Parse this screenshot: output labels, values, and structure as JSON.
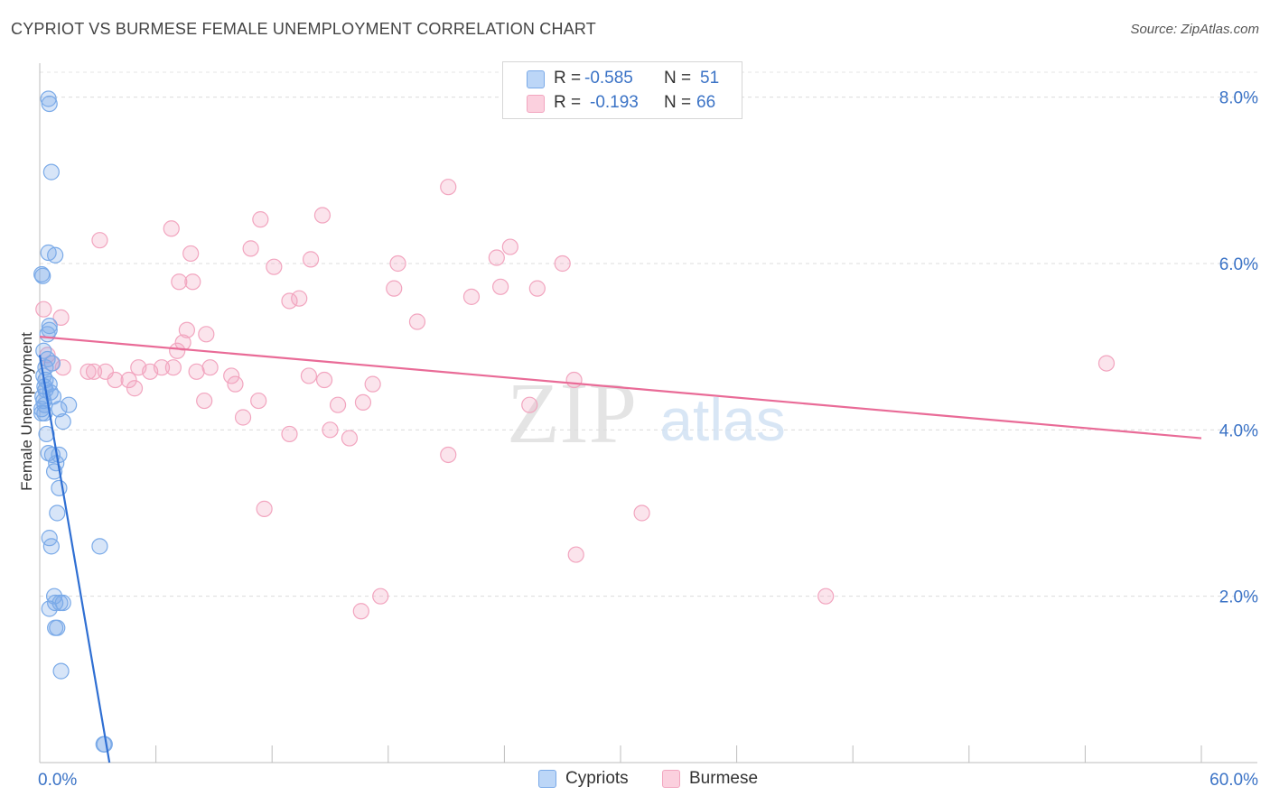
{
  "title": "CYPRIOT VS BURMESE FEMALE UNEMPLOYMENT CORRELATION CHART",
  "source": "Source: ZipAtlas.com",
  "watermark": {
    "zip": "ZIP",
    "atlas": "atlas"
  },
  "legend_box": {
    "series": [
      {
        "r_label": "R =",
        "r_value": "-0.585",
        "n_label": "N =",
        "n_value": "51"
      },
      {
        "r_label": "R =",
        "r_value": "-0.193",
        "n_label": "N =",
        "n_value": "66"
      }
    ]
  },
  "bottom_legend": [
    "Cypriots",
    "Burmese"
  ],
  "chart_data": {
    "type": "scatter",
    "title": "CYPRIOT VS BURMESE FEMALE UNEMPLOYMENT CORRELATION CHART",
    "xlabel": "",
    "ylabel": "Female Unemployment",
    "xlim": [
      0,
      60
    ],
    "ylim": [
      0,
      8.3
    ],
    "x_tick_labels": [
      "0.0%",
      "60.0%"
    ],
    "y_ticks": [
      2,
      4,
      6,
      8
    ],
    "y_tick_labels": [
      "2.0%",
      "4.0%",
      "6.0%",
      "8.0%"
    ],
    "grid": "horizontal dashed",
    "colors": {
      "cypriots": "#7aaae8",
      "burmese": "#f2a5bf",
      "cypriots_line": "#2f6fd3",
      "burmese_line": "#e96b97",
      "tick_label": "#3b73c6"
    },
    "series": [
      {
        "name": "Cypriots",
        "r": -0.585,
        "n": 51,
        "trend": {
          "x": [
            0.0,
            3.6
          ],
          "y": [
            4.9,
            0.0
          ]
        },
        "points": [
          [
            0.45,
            7.98
          ],
          [
            0.5,
            7.92
          ],
          [
            0.6,
            7.1
          ],
          [
            0.45,
            6.13
          ],
          [
            0.8,
            6.1
          ],
          [
            0.1,
            5.87
          ],
          [
            0.15,
            5.85
          ],
          [
            0.5,
            5.25
          ],
          [
            0.5,
            5.2
          ],
          [
            0.4,
            5.15
          ],
          [
            0.2,
            4.95
          ],
          [
            0.4,
            4.85
          ],
          [
            0.65,
            4.8
          ],
          [
            0.3,
            4.6
          ],
          [
            0.25,
            4.52
          ],
          [
            0.3,
            4.48
          ],
          [
            0.55,
            4.45
          ],
          [
            0.15,
            4.4
          ],
          [
            0.2,
            4.35
          ],
          [
            0.25,
            4.3
          ],
          [
            1.5,
            4.3
          ],
          [
            1.0,
            4.25
          ],
          [
            0.1,
            4.2
          ],
          [
            0.25,
            4.2
          ],
          [
            1.2,
            4.1
          ],
          [
            0.35,
            3.95
          ],
          [
            0.45,
            3.72
          ],
          [
            0.65,
            3.7
          ],
          [
            1.0,
            3.7
          ],
          [
            0.85,
            3.6
          ],
          [
            0.75,
            3.5
          ],
          [
            1.0,
            3.3
          ],
          [
            0.9,
            3.0
          ],
          [
            0.5,
            2.7
          ],
          [
            0.6,
            2.6
          ],
          [
            3.1,
            2.6
          ],
          [
            0.75,
            2.0
          ],
          [
            0.8,
            1.92
          ],
          [
            1.05,
            1.92
          ],
          [
            1.2,
            1.92
          ],
          [
            0.5,
            1.85
          ],
          [
            0.8,
            1.62
          ],
          [
            0.9,
            1.62
          ],
          [
            1.1,
            1.1
          ],
          [
            3.3,
            0.22
          ],
          [
            3.35,
            0.22
          ],
          [
            0.1,
            4.25
          ],
          [
            0.3,
            4.75
          ],
          [
            0.5,
            4.55
          ],
          [
            0.7,
            4.4
          ],
          [
            0.2,
            4.65
          ]
        ]
      },
      {
        "name": "Burmese",
        "r": -0.193,
        "n": 66,
        "trend": {
          "x": [
            0.0,
            60.0
          ],
          "y": [
            5.12,
            3.9
          ]
        },
        "points": [
          [
            0.2,
            5.45
          ],
          [
            1.1,
            5.35
          ],
          [
            0.4,
            4.9
          ],
          [
            0.6,
            4.8
          ],
          [
            1.2,
            4.75
          ],
          [
            2.8,
            4.7
          ],
          [
            3.4,
            4.7
          ],
          [
            3.9,
            4.6
          ],
          [
            4.6,
            4.6
          ],
          [
            4.9,
            4.5
          ],
          [
            5.1,
            4.75
          ],
          [
            5.7,
            4.7
          ],
          [
            6.3,
            4.75
          ],
          [
            6.9,
            4.75
          ],
          [
            7.1,
            4.95
          ],
          [
            7.4,
            5.05
          ],
          [
            8.1,
            4.7
          ],
          [
            8.5,
            4.35
          ],
          [
            8.8,
            4.75
          ],
          [
            3.1,
            6.28
          ],
          [
            6.8,
            6.42
          ],
          [
            7.8,
            6.12
          ],
          [
            7.2,
            5.78
          ],
          [
            7.9,
            5.78
          ],
          [
            7.6,
            5.2
          ],
          [
            8.6,
            5.15
          ],
          [
            9.9,
            4.65
          ],
          [
            10.1,
            4.55
          ],
          [
            10.5,
            4.15
          ],
          [
            11.4,
            6.53
          ],
          [
            10.9,
            6.18
          ],
          [
            12.1,
            5.96
          ],
          [
            11.3,
            4.35
          ],
          [
            11.6,
            3.05
          ],
          [
            12.9,
            5.55
          ],
          [
            13.4,
            5.58
          ],
          [
            12.9,
            3.95
          ],
          [
            13.9,
            4.65
          ],
          [
            14.6,
            6.58
          ],
          [
            14.7,
            4.6
          ],
          [
            14.0,
            6.05
          ],
          [
            15.0,
            4.0
          ],
          [
            15.4,
            4.3
          ],
          [
            16.7,
            4.33
          ],
          [
            16.0,
            3.9
          ],
          [
            16.6,
            1.82
          ],
          [
            17.6,
            2.0
          ],
          [
            17.2,
            4.55
          ],
          [
            18.5,
            6.0
          ],
          [
            18.3,
            5.7
          ],
          [
            19.5,
            5.3
          ],
          [
            21.1,
            3.7
          ],
          [
            21.1,
            6.92
          ],
          [
            22.3,
            5.6
          ],
          [
            23.6,
            6.07
          ],
          [
            23.8,
            5.72
          ],
          [
            24.3,
            6.2
          ],
          [
            25.3,
            4.3
          ],
          [
            25.7,
            5.7
          ],
          [
            27.0,
            6.0
          ],
          [
            27.6,
            4.6
          ],
          [
            27.7,
            2.5
          ],
          [
            31.1,
            3.0
          ],
          [
            40.6,
            2.0
          ],
          [
            55.1,
            4.8
          ],
          [
            2.5,
            4.7
          ]
        ]
      }
    ]
  }
}
